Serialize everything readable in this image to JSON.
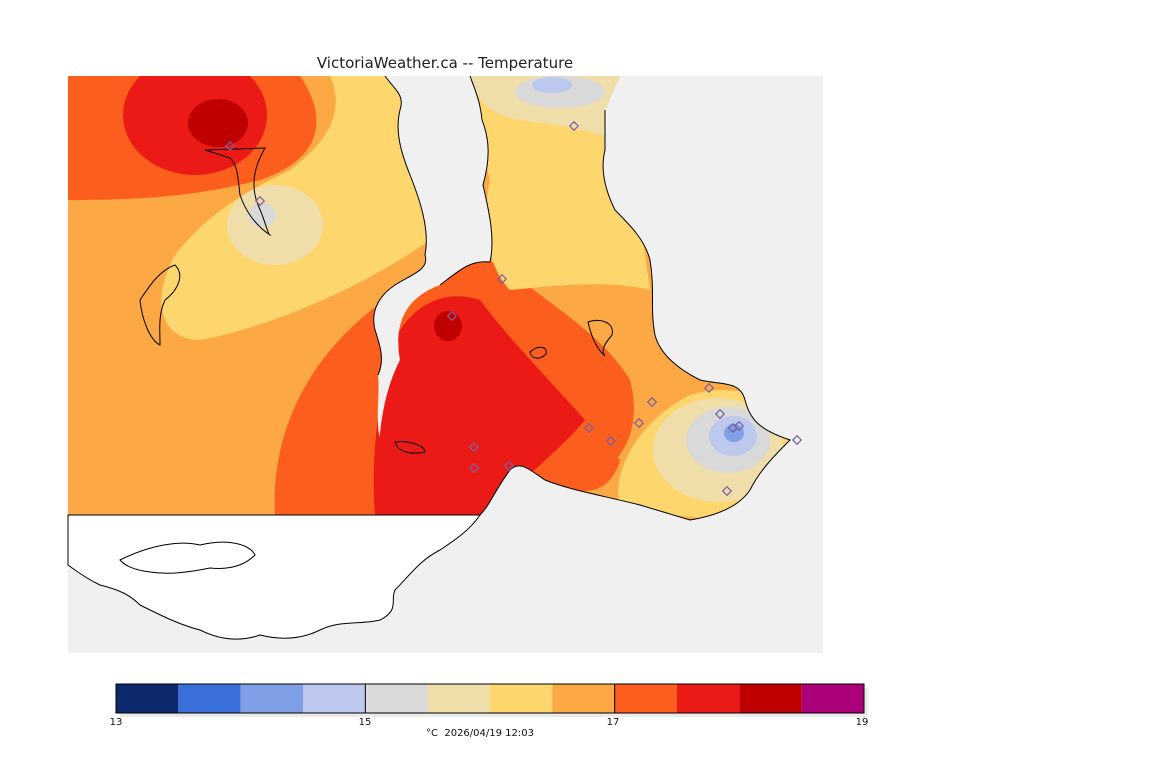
{
  "title": "VictoriaWeather.ca  --  Temperature",
  "legend": {
    "ticks": [
      "13",
      "15",
      "17",
      "19"
    ],
    "caption": "°C  2026/04/19 12:03",
    "bins": [
      {
        "from": 13.0,
        "to": 13.5,
        "color": "#0d2a6e"
      },
      {
        "from": 13.5,
        "to": 14.0,
        "color": "#3b6fd9"
      },
      {
        "from": 14.0,
        "to": 14.5,
        "color": "#7f9fe6"
      },
      {
        "from": 14.5,
        "to": 15.0,
        "color": "#bcc8ee"
      },
      {
        "from": 15.0,
        "to": 15.5,
        "color": "#d9d9d9"
      },
      {
        "from": 15.5,
        "to": 16.0,
        "color": "#f0deaa"
      },
      {
        "from": 16.0,
        "to": 16.5,
        "color": "#fed66e"
      },
      {
        "from": 16.5,
        "to": 17.0,
        "color": "#fca844"
      },
      {
        "from": 17.0,
        "to": 17.5,
        "color": "#fc5e1e"
      },
      {
        "from": 17.5,
        "to": 18.0,
        "color": "#ec1a16"
      },
      {
        "from": 18.0,
        "to": 18.5,
        "color": "#bf0000"
      },
      {
        "from": 18.5,
        "to": 19.0,
        "color": "#ab007a"
      }
    ]
  },
  "colors": {
    "water": "#f0f0f0",
    "outside_land": "#ffffff",
    "coastline": "#000000",
    "station_marker": "#7b5fa0"
  }
}
